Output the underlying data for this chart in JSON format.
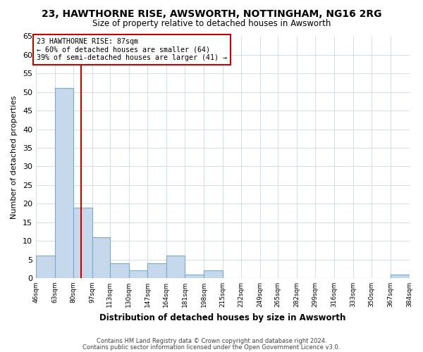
{
  "title": "23, HAWTHORNE RISE, AWSWORTH, NOTTINGHAM, NG16 2RG",
  "subtitle": "Size of property relative to detached houses in Awsworth",
  "xlabel": "Distribution of detached houses by size in Awsworth",
  "ylabel": "Number of detached properties",
  "bar_color": "#c6d9ec",
  "bar_edge_color": "#7aaac8",
  "bin_edges": [
    46,
    63,
    80,
    97,
    113,
    130,
    147,
    164,
    181,
    198,
    215,
    232,
    249,
    265,
    282,
    299,
    316,
    333,
    350,
    367,
    384
  ],
  "bin_labels": [
    "46sqm",
    "63sqm",
    "80sqm",
    "97sqm",
    "113sqm",
    "130sqm",
    "147sqm",
    "164sqm",
    "181sqm",
    "198sqm",
    "215sqm",
    "232sqm",
    "249sqm",
    "265sqm",
    "282sqm",
    "299sqm",
    "316sqm",
    "333sqm",
    "350sqm",
    "367sqm",
    "384sqm"
  ],
  "counts": [
    6,
    51,
    19,
    11,
    4,
    2,
    4,
    6,
    1,
    2,
    0,
    0,
    0,
    0,
    0,
    0,
    0,
    0,
    0,
    1
  ],
  "vline_x": 87,
  "vline_color": "#cc0000",
  "annotation_lines": [
    "23 HAWTHORNE RISE: 87sqm",
    "← 60% of detached houses are smaller (64)",
    "39% of semi-detached houses are larger (41) →"
  ],
  "ylim": [
    0,
    65
  ],
  "yticks": [
    0,
    5,
    10,
    15,
    20,
    25,
    30,
    35,
    40,
    45,
    50,
    55,
    60,
    65
  ],
  "footer_line1": "Contains HM Land Registry data © Crown copyright and database right 2024.",
  "footer_line2": "Contains public sector information licensed under the Open Government Licence v3.0.",
  "background_color": "#ffffff",
  "grid_color": "#d0dce8"
}
